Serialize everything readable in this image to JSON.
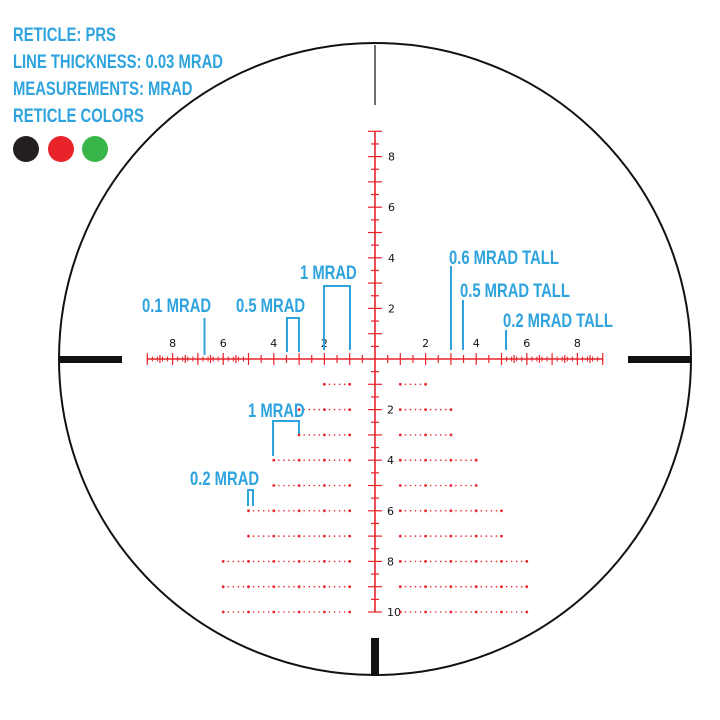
{
  "info": {
    "reticle": "RETICLE: PRS",
    "line_thickness": "LINE THICKNESS: 0.03 MRAD",
    "measurements": "MEASUREMENTS: MRAD",
    "reticle_colors_label": "RETICLE COLORS",
    "colors": [
      "#231f20",
      "#e8232a",
      "#3ab54a"
    ]
  },
  "style": {
    "reticle_color": "#e8232a",
    "annotation_color": "#2ea3dd",
    "post_color": "#111111"
  },
  "scale": {
    "horizontal_labels": [
      2,
      4,
      6,
      8
    ],
    "vertical_labels_up": [
      2,
      4,
      6,
      8
    ],
    "vertical_labels_down": [
      2,
      4,
      6,
      8,
      10
    ],
    "horizontal_extent_mrad": 9,
    "vertical_extent_up_mrad": 9,
    "vertical_extent_down_mrad": 10,
    "fine_subdivision_mrad": 0.2,
    "fine_from_mrad": 5,
    "coarse_subdivision_mrad": 0.5,
    "holdover_rows": [
      {
        "mrad": 1,
        "span": 2
      },
      {
        "mrad": 2,
        "span": 3
      },
      {
        "mrad": 3,
        "span": 3
      },
      {
        "mrad": 4,
        "span": 4
      },
      {
        "mrad": 5,
        "span": 4
      },
      {
        "mrad": 6,
        "span": 5
      },
      {
        "mrad": 7,
        "span": 5
      },
      {
        "mrad": 8,
        "span": 6
      },
      {
        "mrad": 9,
        "span": 6
      },
      {
        "mrad": 10,
        "span": 6
      }
    ]
  },
  "annotations": {
    "a01": "0.1 MRAD",
    "a05": "0.5 MRAD",
    "a1": "1 MRAD",
    "t06": "0.6 MRAD TALL",
    "t05": "0.5 MRAD TALL",
    "t02": "0.2 MRAD TALL",
    "b1": "1 MRAD",
    "b02": "0.2 MRAD"
  }
}
